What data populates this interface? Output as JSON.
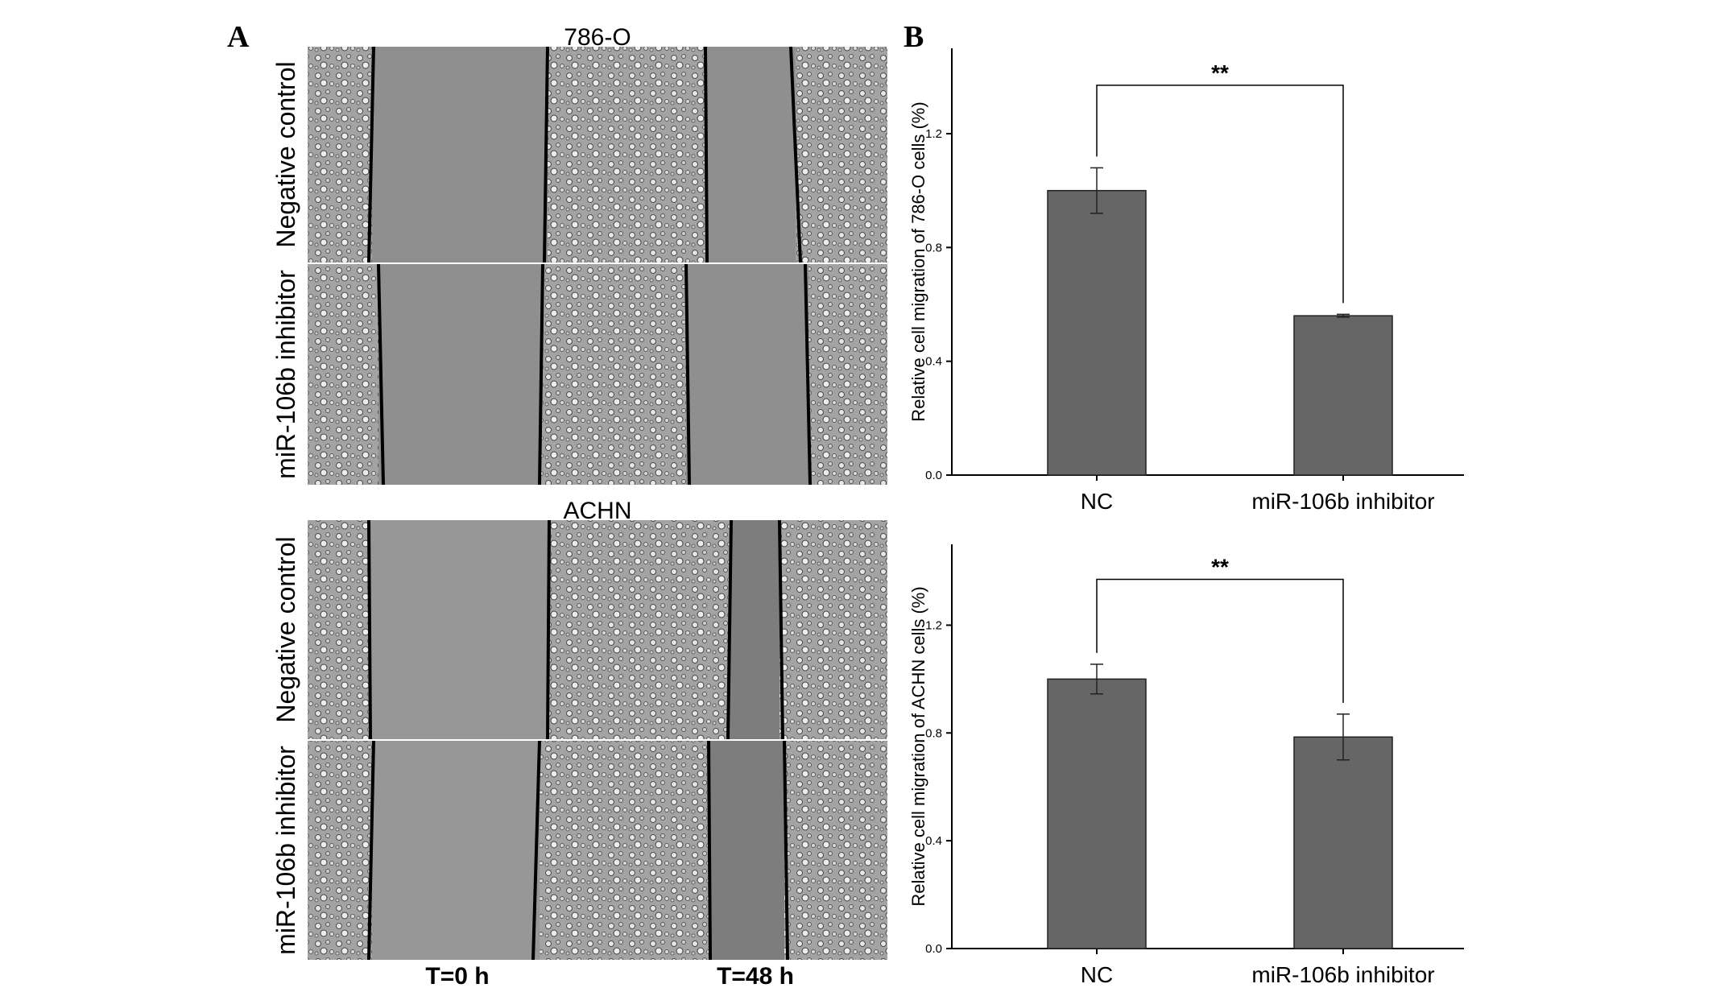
{
  "panel_a": {
    "letter": "A",
    "groups": [
      {
        "title": "786-O",
        "row_labels": [
          "Negative control",
          "miR-106b inhibitor"
        ]
      },
      {
        "title": "ACHN",
        "row_labels": [
          "Negative control",
          "miR-106b inhibitor"
        ]
      }
    ],
    "time_labels": [
      "T=0 h",
      "T=48 h"
    ],
    "image_tone": "#9a9a9a",
    "gap_tone": "#8c8c8c"
  },
  "panel_b": {
    "letter": "B"
  },
  "chart_data": [
    {
      "type": "bar",
      "categories": [
        "NC",
        "miR-106b inhibitor"
      ],
      "values": [
        1.0,
        0.56
      ],
      "errors": [
        0.08,
        0.005
      ],
      "ylabel": "Relative cell migration of 786-O cells (%)",
      "ylim": [
        0,
        1.5
      ],
      "yticks": [
        0.0,
        0.4,
        0.8,
        1.2
      ],
      "significance": "**",
      "bar_color": "#666666",
      "grid": false
    },
    {
      "type": "bar",
      "categories": [
        "NC",
        "miR-106b inhibitor"
      ],
      "values": [
        1.0,
        0.785
      ],
      "errors": [
        0.055,
        0.085
      ],
      "ylabel": "Relative cell migration of ACHN cells (%)",
      "ylim": [
        0,
        1.5
      ],
      "yticks": [
        0.0,
        0.4,
        0.8,
        1.2
      ],
      "significance": "**",
      "bar_color": "#666666",
      "grid": false
    }
  ]
}
